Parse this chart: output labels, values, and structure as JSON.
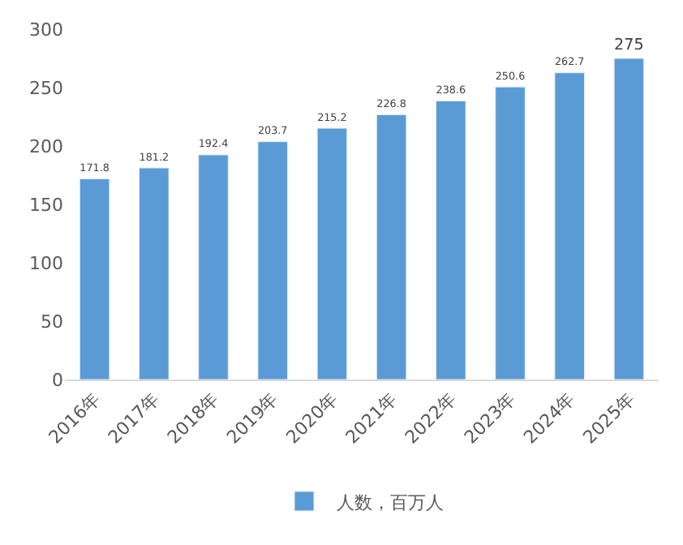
{
  "chart_data": {
    "type": "bar",
    "categories": [
      "2016年",
      "2017年",
      "2018年",
      "2019年",
      "2020年",
      "2021年",
      "2022年",
      "2023年",
      "2024年",
      "2025年"
    ],
    "series": [
      {
        "name": "人数，百万人",
        "color": "#5b9bd5",
        "values": [
          171.8,
          181.2,
          192.4,
          203.7,
          215.2,
          226.8,
          238.6,
          250.6,
          262.7,
          275
        ]
      }
    ],
    "ylim": [
      0,
      300
    ],
    "yticks": [
      0,
      50,
      100,
      150,
      200,
      250,
      300
    ],
    "data_labels": true,
    "grid": false,
    "legend": "bottom"
  }
}
